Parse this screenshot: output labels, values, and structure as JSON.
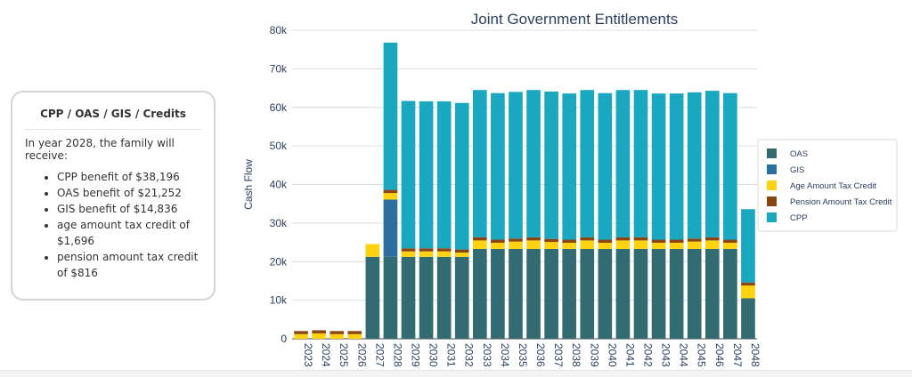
{
  "summary_card": {
    "title": "CPP / OAS / GIS / Credits",
    "intro": "In year 2028, the family will receive:",
    "items": [
      "CPP benefit of $38,196",
      "OAS benefit of $21,252",
      "GIS benefit of $14,836",
      "age amount tax credit of $1,696",
      "pension amount tax credit of $816"
    ]
  },
  "chart_data": {
    "type": "bar",
    "stacked": true,
    "title": "Joint Government Entitlements",
    "xlabel": "",
    "ylabel": "Cash Flow",
    "ylim": [
      0,
      80000
    ],
    "yticks": [
      "0",
      "10k",
      "20k",
      "30k",
      "40k",
      "50k",
      "60k",
      "70k",
      "80k"
    ],
    "grid": true,
    "legend_position": "right",
    "categories": [
      "2023",
      "2024",
      "2025",
      "2026",
      "2027",
      "2028",
      "2029",
      "2030",
      "2031",
      "2032",
      "2033",
      "2034",
      "2035",
      "2036",
      "2037",
      "2038",
      "2039",
      "2040",
      "2041",
      "2042",
      "2043",
      "2044",
      "2045",
      "2046",
      "2047",
      "2048"
    ],
    "series": [
      {
        "name": "OAS",
        "color": "#336b73",
        "values": [
          0,
          0,
          0,
          0,
          21252,
          21252,
          21252,
          21252,
          21252,
          21252,
          23300,
          23300,
          23300,
          23300,
          23300,
          23300,
          23300,
          23300,
          23300,
          23300,
          23300,
          23300,
          23300,
          23300,
          23300,
          10500
        ]
      },
      {
        "name": "GIS",
        "color": "#2a6f9f",
        "values": [
          0,
          0,
          0,
          0,
          0,
          14836,
          0,
          0,
          0,
          0,
          0,
          0,
          0,
          0,
          0,
          0,
          0,
          0,
          0,
          0,
          0,
          0,
          0,
          0,
          0,
          0
        ]
      },
      {
        "name": "Age Amount Tax Credit",
        "color": "#fdd20e",
        "values": [
          1200,
          1400,
          1200,
          1200,
          3300,
          1696,
          1400,
          1400,
          1400,
          1100,
          2200,
          1600,
          1900,
          2200,
          1800,
          1600,
          2200,
          1600,
          2200,
          2200,
          1600,
          1600,
          1900,
          2200,
          1600,
          3300
        ]
      },
      {
        "name": "Pension Amount Tax Credit",
        "color": "#8b4511",
        "values": [
          800,
          800,
          800,
          800,
          0,
          816,
          800,
          800,
          800,
          800,
          800,
          800,
          800,
          800,
          800,
          800,
          800,
          800,
          800,
          800,
          800,
          800,
          800,
          800,
          800,
          800
        ]
      },
      {
        "name": "CPP",
        "color": "#1aa7c0",
        "values": [
          0,
          0,
          0,
          0,
          0,
          38196,
          38200,
          38100,
          38100,
          38000,
          38200,
          38000,
          38000,
          38200,
          38200,
          37900,
          38200,
          38000,
          38200,
          38200,
          37900,
          37900,
          37900,
          38000,
          38000,
          19000
        ]
      }
    ]
  }
}
